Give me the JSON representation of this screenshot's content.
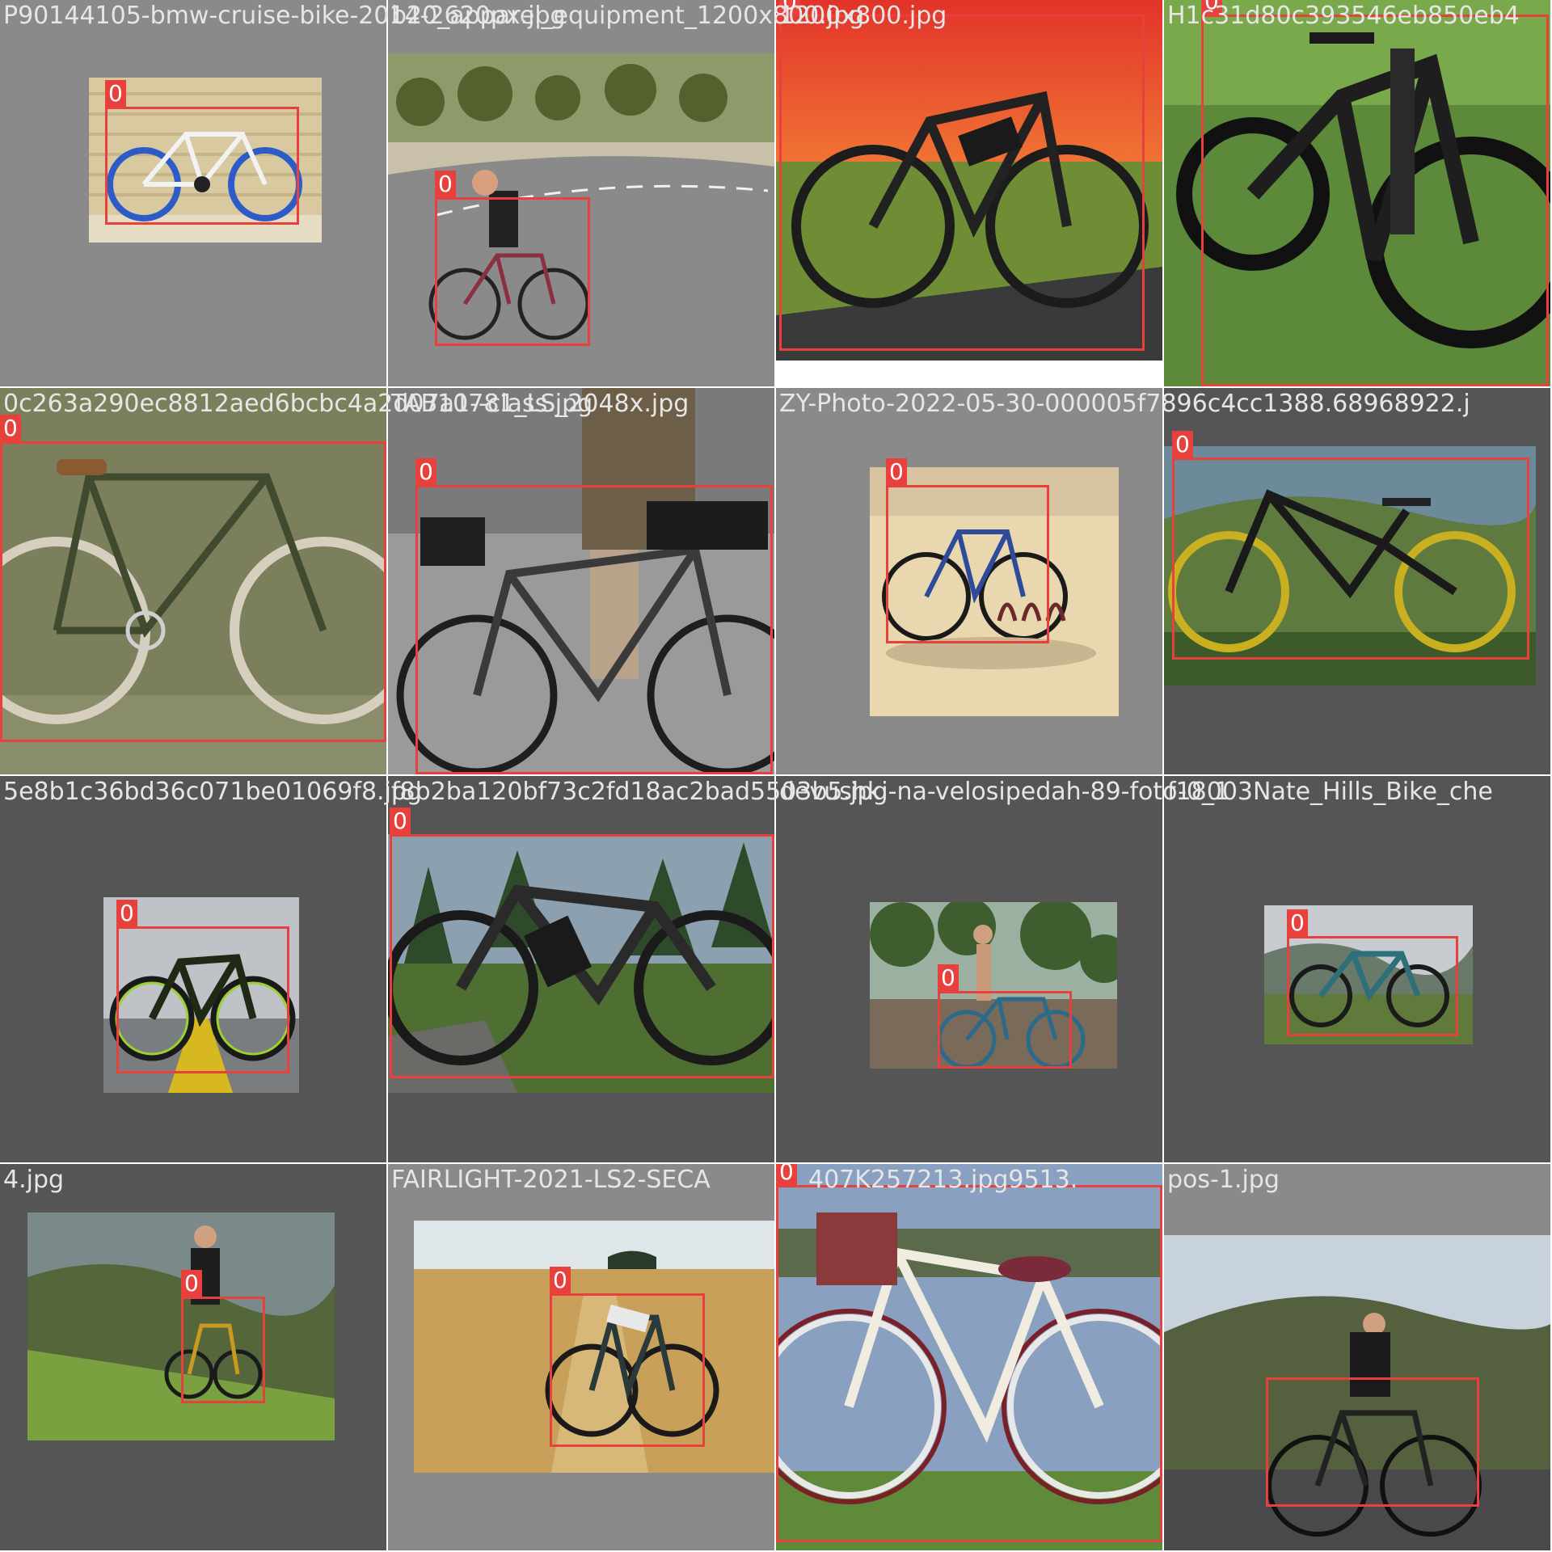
{
  "colors": {
    "box": "#e8403c",
    "label_text": "#ffffff",
    "caption_text": "#e6e6e6",
    "pad_light": "#8a8a8a",
    "pad_dark": "#555555"
  },
  "tiles": [
    {
      "filename": "P90144105-bmw-cruise-bike-2014-2620px.jpg",
      "boxes": [
        {
          "class_id": "0"
        }
      ]
    },
    {
      "filename": "b20_apparel_equipment_1200x800.jpg",
      "boxes": [
        {
          "class_id": "0"
        }
      ]
    },
    {
      "filename": "1200x800.jpg",
      "boxes": [
        {
          "class_id": "0"
        }
      ]
    },
    {
      "filename": "H1c31d80c393546eb850eb4",
      "boxes": [
        {
          "class_id": "0"
        }
      ]
    },
    {
      "filename": "0c263a290ec8812aed6bcbc4a2d07a1--class.jpg",
      "boxes": [
        {
          "class_id": "0"
        }
      ]
    },
    {
      "filename": "TAB10781_LS_2048x.jpg",
      "boxes": [
        {
          "class_id": "0"
        }
      ]
    },
    {
      "filename": "ZY-Photo-2022-05-30-000005f7896c4cc1388.68968922.j",
      "boxes": [
        {
          "class_id": "0"
        }
      ]
    },
    {
      "filename": "5e8b1c36bd36c071be01069f8.jpg",
      "boxes": [
        {
          "class_id": "0"
        }
      ]
    },
    {
      "filename": "f8b2ba120bf73c2fd18ac2bad5503b5.jpg",
      "boxes": [
        {
          "class_id": "0"
        }
      ]
    },
    {
      "filename": "devushki-na-velosipedah-89-foto-0_1",
      "boxes": [
        {
          "class_id": "0"
        }
      ]
    },
    {
      "filename": "f18003Nate_Hills_Bike_che",
      "boxes": [
        {
          "class_id": "0"
        }
      ]
    },
    {
      "filename": "4.jpg",
      "boxes": [
        {
          "class_id": "0"
        }
      ]
    },
    {
      "filename": "FAIRLIGHT-2021-LS2-SECA",
      "boxes": [
        {
          "class_id": "0"
        }
      ]
    },
    {
      "filename": "407K257213.jpg9513.",
      "boxes": [
        {
          "class_id": "0"
        }
      ]
    },
    {
      "filename": "pos-1.jpg",
      "boxes": [
        {
          "class_id": "0"
        }
      ]
    }
  ]
}
